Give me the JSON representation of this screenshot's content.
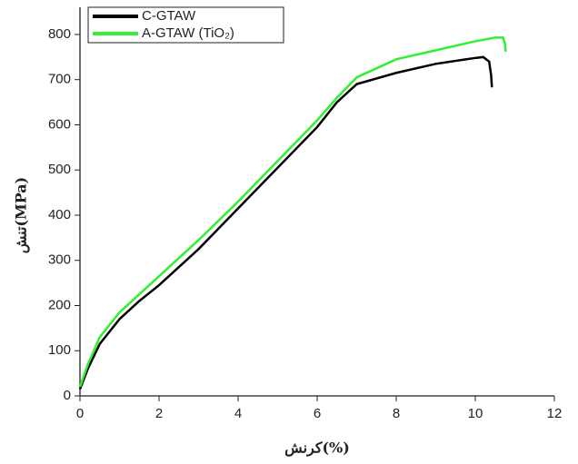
{
  "chart_data": {
    "type": "line",
    "x_label": "کرنش(%)",
    "y_label": "تنش(MPa)",
    "xlim": [
      0,
      12
    ],
    "xticks": [
      0,
      2,
      4,
      6,
      8,
      10,
      12
    ],
    "ylim": [
      0,
      820
    ],
    "yticks": [
      0,
      100,
      200,
      300,
      400,
      500,
      600,
      700,
      800
    ],
    "legend": "upper-left",
    "series": [
      {
        "name": "C-GTAW",
        "color": "#000000",
        "x": [
          0,
          0.2,
          0.5,
          1,
          1.5,
          2,
          3,
          4,
          5,
          6,
          6.5,
          7,
          8,
          9,
          10,
          10.2,
          10.35,
          10.4,
          10.42
        ],
        "values": [
          15,
          60,
          115,
          170,
          210,
          245,
          325,
          415,
          505,
          595,
          650,
          690,
          715,
          735,
          748,
          750,
          740,
          710,
          683
        ]
      },
      {
        "name": "A-GTAW (TiO₂)",
        "color": "#33ee33",
        "x": [
          0,
          0.2,
          0.5,
          1,
          1.5,
          2,
          3,
          4,
          5,
          6,
          6.5,
          7,
          8,
          9,
          10,
          10.5,
          10.7,
          10.75,
          10.77
        ],
        "values": [
          20,
          70,
          130,
          185,
          225,
          265,
          345,
          430,
          520,
          610,
          660,
          705,
          745,
          765,
          785,
          793,
          793,
          780,
          762
        ]
      }
    ]
  }
}
